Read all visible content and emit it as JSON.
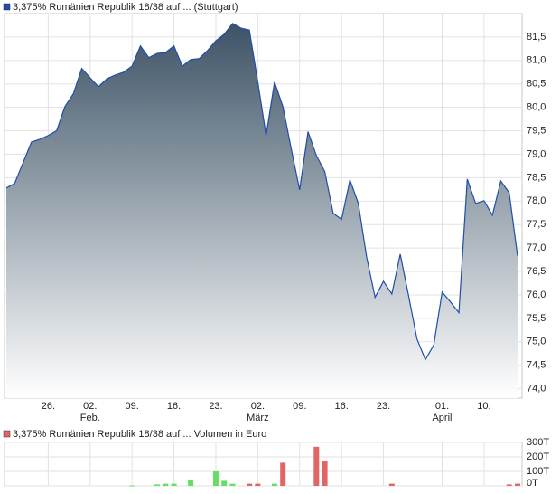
{
  "chart_data": [
    {
      "type": "area",
      "title": "3,375% Rumänien Republik 18/38 auf ... (Stuttgart)",
      "color": "#1f4ea8",
      "fill_top": "#3d5366",
      "categories": [
        null,
        null,
        null,
        null,
        null,
        "26.",
        null,
        null,
        null,
        null,
        "02.",
        null,
        null,
        null,
        null,
        "09.",
        null,
        null,
        null,
        null,
        "16.",
        null,
        null,
        null,
        null,
        "23.",
        null,
        null,
        null,
        null,
        "02.",
        null,
        null,
        null,
        null,
        "09.",
        null,
        null,
        null,
        null,
        "16.",
        null,
        null,
        null,
        null,
        "23.",
        null,
        null,
        null,
        null,
        null,
        null,
        "01.",
        null,
        null,
        null,
        null,
        "10.",
        null,
        null,
        null,
        null
      ],
      "months": [
        null,
        null,
        null,
        null,
        null,
        null,
        null,
        null,
        null,
        null,
        "Feb.",
        null,
        null,
        null,
        null,
        null,
        null,
        null,
        null,
        null,
        null,
        null,
        null,
        null,
        null,
        null,
        null,
        null,
        null,
        null,
        "März",
        null,
        null,
        null,
        null,
        null,
        null,
        null,
        null,
        null,
        null,
        null,
        null,
        null,
        null,
        null,
        null,
        null,
        null,
        null,
        null,
        null,
        "April",
        null,
        null,
        null,
        null,
        null,
        null,
        null,
        null,
        null
      ],
      "values": [
        78.28,
        78.38,
        78.82,
        79.26,
        79.32,
        79.4,
        79.5,
        80.02,
        80.29,
        80.83,
        80.63,
        80.44,
        80.61,
        80.69,
        80.75,
        80.88,
        81.31,
        81.06,
        81.15,
        81.17,
        81.31,
        80.88,
        81.02,
        81.04,
        81.21,
        81.42,
        81.56,
        81.79,
        81.69,
        81.65,
        80.55,
        79.4,
        80.54,
        80.02,
        79.11,
        78.24,
        79.48,
        78.97,
        78.63,
        77.74,
        77.61,
        78.45,
        77.95,
        76.8,
        75.95,
        76.29,
        76.02,
        76.87,
        75.98,
        75.06,
        74.62,
        74.93,
        76.06,
        75.85,
        75.62,
        78.47,
        77.95,
        78.01,
        77.7,
        78.43,
        78.18,
        76.83
      ],
      "ylim": [
        73.8,
        82.0
      ],
      "yticks": [
        {
          "value": 74.0,
          "label": "74,0"
        },
        {
          "value": 74.5,
          "label": "74,5"
        },
        {
          "value": 75.0,
          "label": "75,0"
        },
        {
          "value": 75.5,
          "label": "75,5"
        },
        {
          "value": 76.0,
          "label": "76,0"
        },
        {
          "value": 76.5,
          "label": "76,5"
        },
        {
          "value": 77.0,
          "label": "77,0"
        },
        {
          "value": 77.5,
          "label": "77,5"
        },
        {
          "value": 78.0,
          "label": "78,0"
        },
        {
          "value": 78.5,
          "label": "78,5"
        },
        {
          "value": 79.0,
          "label": "79,0"
        },
        {
          "value": 79.5,
          "label": "79,5"
        },
        {
          "value": 80.0,
          "label": "80,0"
        },
        {
          "value": 80.5,
          "label": "80,5"
        },
        {
          "value": 81.0,
          "label": "81,0"
        },
        {
          "value": 81.5,
          "label": "81,5"
        }
      ],
      "grid": true
    },
    {
      "type": "bar",
      "title": "3,375% Rumänien Republik 18/38 auf ... Volumen in Euro",
      "color": "#e06666",
      "values": [
        null,
        null,
        null,
        null,
        null,
        null,
        null,
        null,
        null,
        null,
        null,
        null,
        null,
        null,
        null,
        3000,
        null,
        null,
        10000,
        15000,
        15000,
        null,
        40000,
        null,
        null,
        100000,
        35000,
        15000,
        null,
        15000,
        15000,
        null,
        15000,
        160000,
        null,
        null,
        null,
        270000,
        170000,
        null,
        null,
        null,
        null,
        null,
        null,
        null,
        15000,
        null,
        null,
        null,
        null,
        null,
        null,
        null,
        null,
        null,
        null,
        null,
        null,
        null,
        10000,
        15000
      ],
      "colors": [
        null,
        null,
        null,
        null,
        null,
        null,
        null,
        null,
        null,
        null,
        null,
        null,
        null,
        null,
        null,
        "#66dd66",
        null,
        null,
        "#66dd66",
        "#66dd66",
        "#66dd66",
        null,
        "#66dd66",
        null,
        null,
        "#66dd66",
        "#66dd66",
        "#66dd66",
        null,
        "#e06666",
        "#e06666",
        null,
        "#66dd66",
        "#e06666",
        null,
        null,
        null,
        "#e06666",
        "#e06666",
        null,
        null,
        null,
        null,
        null,
        null,
        null,
        "#e06666",
        null,
        null,
        null,
        null,
        null,
        null,
        null,
        null,
        null,
        null,
        null,
        null,
        null,
        "#e06666",
        "#e06666"
      ],
      "ylim": [
        0,
        300000
      ],
      "yticks": [
        {
          "value": 0,
          "label": "0T"
        },
        {
          "value": 100000,
          "label": "100T"
        },
        {
          "value": 200000,
          "label": "200T"
        },
        {
          "value": 300000,
          "label": "300T"
        }
      ],
      "grid": true
    }
  ]
}
